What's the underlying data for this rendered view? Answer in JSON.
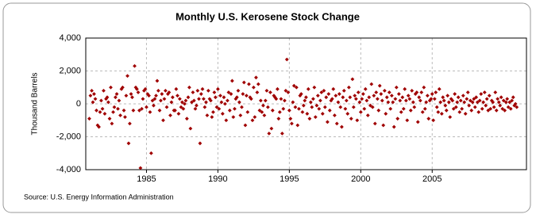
{
  "chart_data": {
    "type": "scatter",
    "title": "Monthly U.S. Kerosene Stock Change",
    "y_label": "Thousand Barrels",
    "source": "Source: U.S. Energy Information Administration",
    "color": "#a00000",
    "grid": true,
    "xlim": [
      1980.75,
      2011.6
    ],
    "xticks": [
      1985,
      1990,
      1995,
      2000,
      2005
    ],
    "ylim": [
      -4000,
      4000
    ],
    "yticks": [
      {
        "value": -4000,
        "label": "-4,000"
      },
      {
        "value": -2000,
        "label": "-2,000"
      },
      0,
      {
        "value": 2000,
        "label": "2,000"
      },
      {
        "value": 4000,
        "label": "4,000"
      }
    ],
    "x": [
      1981,
      1981.08,
      1981.17,
      1981.25,
      1981.33,
      1981.42,
      1981.5,
      1981.58,
      1981.67,
      1981.75,
      1981.83,
      1981.92,
      1982,
      1982.08,
      1982.17,
      1982.25,
      1982.33,
      1982.42,
      1982.5,
      1982.58,
      1982.67,
      1982.75,
      1982.83,
      1982.92,
      1983,
      1983.08,
      1983.17,
      1983.25,
      1983.33,
      1983.42,
      1983.5,
      1983.58,
      1983.67,
      1983.75,
      1983.83,
      1983.92,
      1984,
      1984.08,
      1984.17,
      1984.25,
      1984.33,
      1984.42,
      1984.5,
      1984.58,
      1984.67,
      1984.75,
      1984.83,
      1984.92,
      1985,
      1985.08,
      1985.17,
      1985.25,
      1985.33,
      1985.42,
      1985.5,
      1985.58,
      1985.67,
      1985.75,
      1985.83,
      1985.92,
      1986,
      1986.08,
      1986.17,
      1986.25,
      1986.33,
      1986.42,
      1986.5,
      1986.58,
      1986.67,
      1986.75,
      1986.83,
      1986.92,
      1987,
      1987.08,
      1987.17,
      1987.25,
      1987.33,
      1987.42,
      1987.5,
      1987.58,
      1987.67,
      1987.75,
      1987.83,
      1987.92,
      1988,
      1988.08,
      1988.17,
      1988.25,
      1988.33,
      1988.42,
      1988.5,
      1988.58,
      1988.67,
      1988.75,
      1988.83,
      1988.92,
      1989,
      1989.08,
      1989.17,
      1989.25,
      1989.33,
      1989.42,
      1989.5,
      1989.58,
      1989.67,
      1989.75,
      1989.83,
      1989.92,
      1990,
      1990.08,
      1990.17,
      1990.25,
      1990.33,
      1990.42,
      1990.5,
      1990.58,
      1990.67,
      1990.75,
      1990.83,
      1990.92,
      1991,
      1991.08,
      1991.17,
      1991.25,
      1991.33,
      1991.42,
      1991.5,
      1991.58,
      1991.67,
      1991.75,
      1991.83,
      1991.92,
      1992,
      1992.08,
      1992.17,
      1992.25,
      1992.33,
      1992.42,
      1992.5,
      1992.58,
      1992.67,
      1992.75,
      1992.83,
      1992.92,
      1993,
      1993.08,
      1993.17,
      1993.25,
      1993.33,
      1993.42,
      1993.5,
      1993.58,
      1993.67,
      1993.75,
      1993.83,
      1993.92,
      1994,
      1994.08,
      1994.17,
      1994.25,
      1994.33,
      1994.42,
      1994.5,
      1994.58,
      1994.67,
      1994.75,
      1994.83,
      1994.92,
      1995,
      1995.08,
      1995.17,
      1995.25,
      1995.33,
      1995.42,
      1995.5,
      1995.58,
      1995.67,
      1995.75,
      1995.83,
      1995.92,
      1996,
      1996.08,
      1996.17,
      1996.25,
      1996.33,
      1996.42,
      1996.5,
      1996.58,
      1996.67,
      1996.75,
      1996.83,
      1996.92,
      1997,
      1997.08,
      1997.17,
      1997.25,
      1997.33,
      1997.42,
      1997.5,
      1997.58,
      1997.67,
      1997.75,
      1997.83,
      1997.92,
      1998,
      1998.08,
      1998.17,
      1998.25,
      1998.33,
      1998.42,
      1998.5,
      1998.58,
      1998.67,
      1998.75,
      1998.83,
      1998.92,
      1999,
      1999.08,
      1999.17,
      1999.25,
      1999.33,
      1999.42,
      1999.5,
      1999.58,
      1999.67,
      1999.75,
      1999.83,
      1999.92,
      2000,
      2000.08,
      2000.17,
      2000.25,
      2000.33,
      2000.42,
      2000.5,
      2000.58,
      2000.67,
      2000.75,
      2000.83,
      2000.92,
      2001,
      2001.08,
      2001.17,
      2001.25,
      2001.33,
      2001.42,
      2001.5,
      2001.58,
      2001.67,
      2001.75,
      2001.83,
      2001.92,
      2002,
      2002.08,
      2002.17,
      2002.25,
      2002.33,
      2002.42,
      2002.5,
      2002.58,
      2002.67,
      2002.75,
      2002.83,
      2002.92,
      2003,
      2003.08,
      2003.17,
      2003.25,
      2003.33,
      2003.42,
      2003.5,
      2003.58,
      2003.67,
      2003.75,
      2003.83,
      2003.92,
      2004,
      2004.08,
      2004.17,
      2004.25,
      2004.33,
      2004.42,
      2004.5,
      2004.58,
      2004.67,
      2004.75,
      2004.83,
      2004.92,
      2005,
      2005.08,
      2005.17,
      2005.25,
      2005.33,
      2005.42,
      2005.5,
      2005.58,
      2005.67,
      2005.75,
      2005.83,
      2005.92,
      2006,
      2006.08,
      2006.17,
      2006.25,
      2006.33,
      2006.42,
      2006.5,
      2006.58,
      2006.67,
      2006.75,
      2006.83,
      2006.92,
      2007,
      2007.08,
      2007.17,
      2007.25,
      2007.33,
      2007.42,
      2007.5,
      2007.58,
      2007.67,
      2007.75,
      2007.83,
      2007.92,
      2008,
      2008.08,
      2008.17,
      2008.25,
      2008.33,
      2008.42,
      2008.5,
      2008.58,
      2008.67,
      2008.75,
      2008.83,
      2008.92,
      2009,
      2009.08,
      2009.17,
      2009.25,
      2009.33,
      2009.42,
      2009.5,
      2009.58,
      2009.67,
      2009.75,
      2009.83,
      2009.92,
      2010,
      2010.08,
      2010.17,
      2010.25,
      2010.33,
      2010.42,
      2010.5,
      2010.58,
      2010.67,
      2010.75,
      2010.83,
      2010.92
    ],
    "values": [
      -900,
      500,
      800,
      100,
      600,
      300,
      -400,
      -1300,
      -1400,
      -500,
      200,
      -300,
      800,
      -600,
      300,
      400,
      100,
      -900,
      1000,
      -1200,
      -500,
      -200,
      400,
      600,
      -300,
      200,
      -700,
      900,
      1000,
      -400,
      -800,
      500,
      1700,
      -2400,
      -1200,
      600,
      400,
      -400,
      2300,
      1000,
      900,
      700,
      -400,
      -3900,
      -300,
      300,
      800,
      900,
      -200,
      600,
      500,
      -500,
      -3000,
      200,
      -100,
      300,
      500,
      1400,
      800,
      -400,
      200,
      600,
      -1000,
      300,
      800,
      -200,
      600,
      700,
      -700,
      100,
      400,
      -400,
      -400,
      900,
      500,
      -600,
      300,
      -200,
      100,
      -300,
      0,
      200,
      -900,
      400,
      1000,
      -1500,
      100,
      700,
      200,
      -300,
      -100,
      800,
      300,
      -2400,
      600,
      900,
      300,
      -200,
      100,
      -700,
      800,
      300,
      200,
      -800,
      -500,
      700,
      400,
      -200,
      900,
      -300,
      500,
      100,
      -600,
      400,
      0,
      -1000,
      200,
      700,
      -400,
      600,
      1400,
      -800,
      -300,
      300,
      400,
      800,
      100,
      -700,
      -200,
      600,
      1300,
      -1300,
      500,
      -500,
      1200,
      400,
      300,
      -1000,
      1000,
      -800,
      1600,
      700,
      1200,
      -400,
      200,
      -500,
      -100,
      -700,
      200,
      800,
      -200,
      -1800,
      700,
      -1500,
      -400,
      500,
      400,
      300,
      900,
      -900,
      -500,
      300,
      -1800,
      -300,
      200,
      800,
      2700,
      700,
      -400,
      -900,
      -1200,
      100,
      1100,
      -200,
      1000,
      -1300,
      -300,
      500,
      600,
      -500,
      -100,
      200,
      400,
      -600,
      900,
      -900,
      100,
      -200,
      300,
      1000,
      -800,
      -100,
      500,
      -300,
      200,
      700,
      -600,
      800,
      -200,
      400,
      -1100,
      600,
      -400,
      200,
      300,
      900,
      -700,
      500,
      -1200,
      100,
      600,
      -200,
      -1400,
      400,
      800,
      -300,
      200,
      -600,
      1000,
      400,
      -900,
      1500,
      -200,
      500,
      300,
      -1000,
      700,
      100,
      -500,
      300,
      600,
      -300,
      900,
      200,
      -700,
      400,
      -100,
      1200,
      -200,
      500,
      -1200,
      700,
      300,
      -400,
      1100,
      600,
      200,
      -1300,
      800,
      -600,
      400,
      100,
      700,
      -300,
      500,
      100,
      -1400,
      300,
      1000,
      -900,
      600,
      200,
      -500,
      400,
      -300,
      900,
      200,
      -1000,
      500,
      300,
      -400,
      800,
      100,
      -200,
      600,
      700,
      -1100,
      400,
      200,
      700,
      -500,
      1000,
      -300,
      100,
      500,
      -900,
      200,
      300,
      600,
      -1000,
      300,
      700,
      -200,
      -500,
      900,
      100,
      -600,
      400,
      200,
      -100,
      -400,
      500,
      100,
      -800,
      300,
      200,
      -300,
      600,
      -200,
      100,
      400,
      -500,
      200,
      -300,
      500,
      100,
      -600,
      300,
      700,
      -100,
      200,
      -400,
      100,
      300,
      -200,
      400,
      100,
      -500,
      200,
      600,
      -300,
      100,
      700,
      -100,
      300,
      -400,
      500,
      -300,
      200,
      100,
      -200,
      700,
      -400,
      300,
      100,
      -100,
      400,
      -300,
      200,
      -400,
      100,
      300,
      -200,
      100,
      -300,
      200,
      400,
      -100,
      0,
      -200
    ]
  }
}
